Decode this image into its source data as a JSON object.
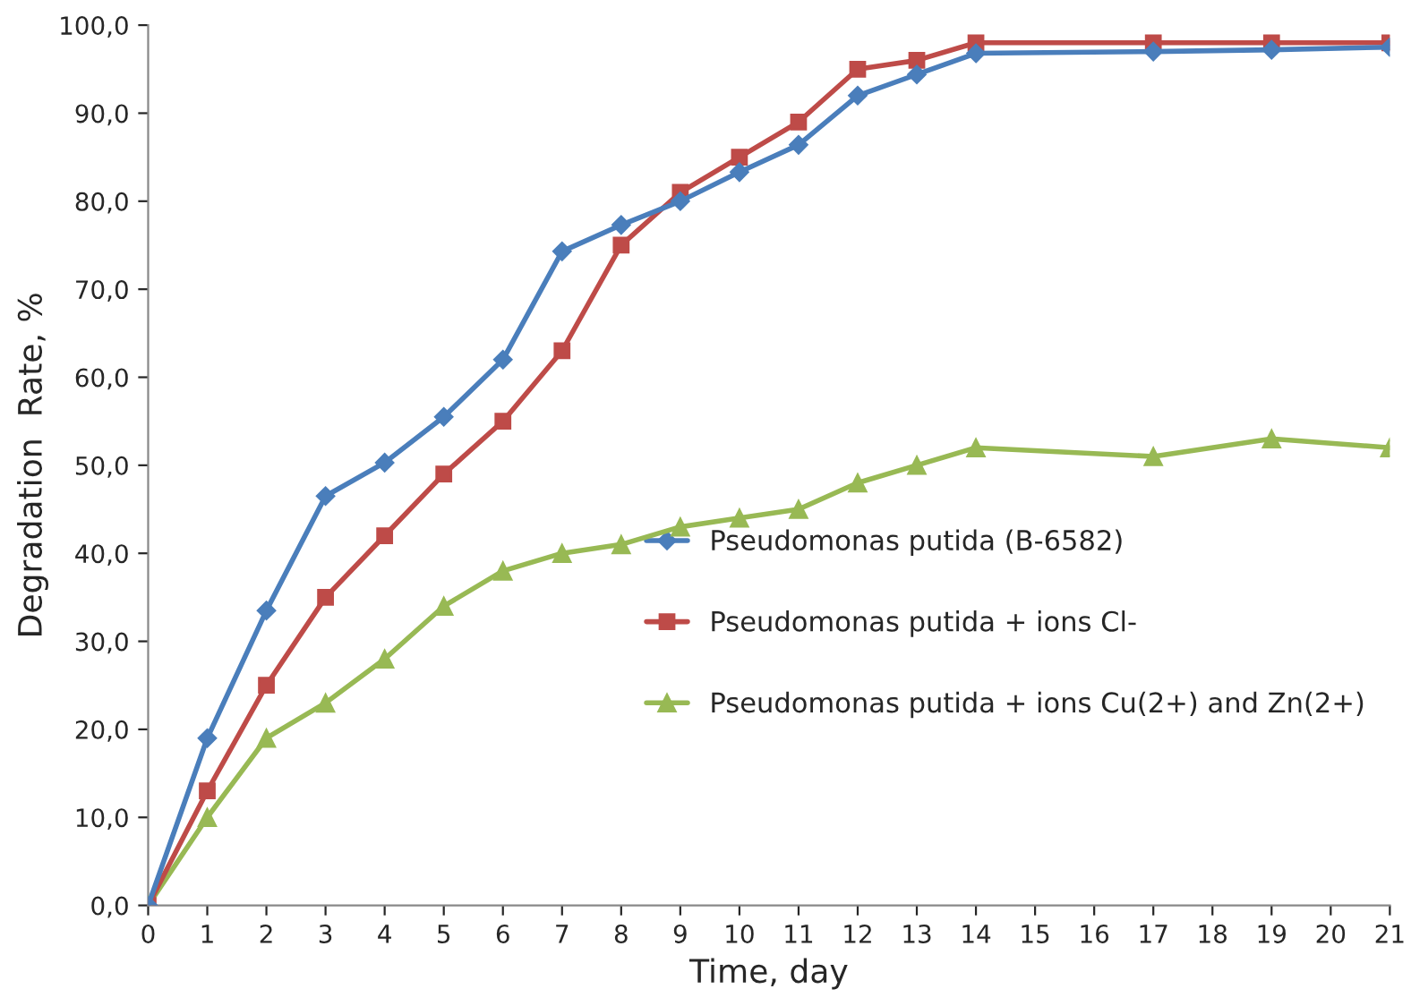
{
  "chart_data": {
    "type": "line",
    "xlabel": "Time, day",
    "ylabel": "Degradation  Rate, %",
    "xlim": [
      0,
      21
    ],
    "xticks": [
      0,
      1,
      2,
      3,
      4,
      5,
      6,
      7,
      8,
      9,
      10,
      11,
      12,
      13,
      14,
      15,
      16,
      17,
      18,
      19,
      20,
      21
    ],
    "ylim": [
      0,
      100
    ],
    "yticks": [
      {
        "value": 0,
        "label": "0,0"
      },
      {
        "value": 10,
        "label": "10,0"
      },
      {
        "value": 20,
        "label": "20,0"
      },
      {
        "value": 30,
        "label": "30,0"
      },
      {
        "value": 40,
        "label": "40,0"
      },
      {
        "value": 50,
        "label": "50,0"
      },
      {
        "value": 60,
        "label": "60,0"
      },
      {
        "value": 70,
        "label": "70,0"
      },
      {
        "value": 80,
        "label": "80,0"
      },
      {
        "value": 90,
        "label": "90,0"
      },
      {
        "value": 100,
        "label": "100,0"
      }
    ],
    "grid": false,
    "legend": "right",
    "line_style": "solid",
    "x": [
      0,
      1,
      2,
      3,
      4,
      5,
      6,
      7,
      8,
      9,
      10,
      11,
      12,
      13,
      14,
      17,
      19,
      21
    ],
    "series": [
      {
        "name": "Pseudomonas putida (B-6582)",
        "color": "#4a7ebb",
        "marker": "diamond",
        "values": [
          0,
          19,
          33.5,
          46.5,
          50.3,
          55.5,
          62,
          74.3,
          77.3,
          80,
          83.3,
          86.4,
          92,
          94.4,
          96.8,
          97,
          97.2,
          97.5
        ]
      },
      {
        "name": "Pseudomonas putida + ions Cl-",
        "color": "#be4b48",
        "marker": "square",
        "values": [
          0,
          13,
          25,
          35,
          42,
          49,
          55,
          63,
          75,
          81,
          85,
          89,
          95,
          96,
          98,
          98,
          98,
          98
        ]
      },
      {
        "name": "Pseudomonas putida + ions Cu(2+) and Zn(2+)",
        "color": "#98b954",
        "marker": "triangle",
        "values": [
          0,
          10,
          19,
          23,
          28,
          34,
          38,
          40,
          41,
          43,
          44,
          45,
          48,
          50,
          52,
          51,
          53,
          52
        ]
      }
    ]
  }
}
